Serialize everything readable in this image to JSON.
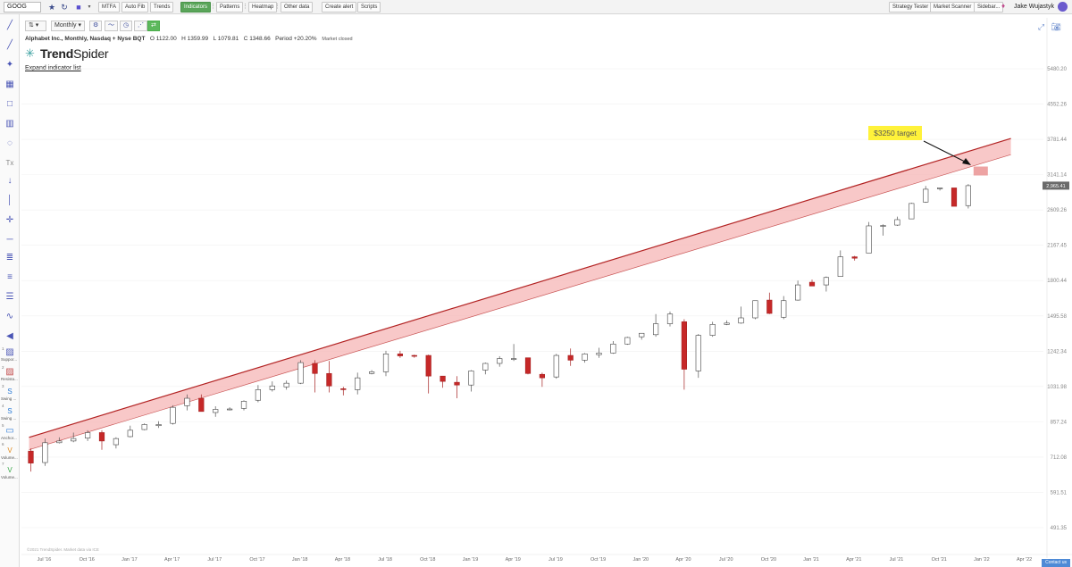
{
  "topbar": {
    "symbol": "GOOG",
    "buttons": [
      "MTFA",
      "Auto Fib",
      "Trends",
      "Indicators",
      "Patterns",
      "Heatmap",
      "Other data",
      "Create alert",
      "Scripts"
    ],
    "right_buttons": [
      "Strategy Tester",
      "Market Scanner",
      "Sidebar..."
    ],
    "user_name": "Jake Wujastyk"
  },
  "chart_toolbar": {
    "timeframe": "Monthly"
  },
  "info": {
    "name": "Alphabet Inc., Monthly, Nasdaq + Nyse BQT",
    "open": "O 1122.00",
    "high": "H 1359.99",
    "low": "L 1079.81",
    "close": "C 1348.66",
    "period": "Period +20.20%",
    "market_status": "Market closed"
  },
  "logo": {
    "trend": "Trend",
    "spider": "Spider"
  },
  "expand_link": "Expand indicator list",
  "left_labels": [
    {
      "num": "1",
      "label": "Suppor..."
    },
    {
      "num": "2",
      "label": "Resista..."
    },
    {
      "num": "3",
      "label": "Swing ..."
    },
    {
      "num": "4",
      "label": "Swing ..."
    },
    {
      "num": "5",
      "label": "Anchor..."
    },
    {
      "num": "6",
      "label": "Volume..."
    },
    {
      "num": "7",
      "label": "Volume..."
    }
  ],
  "annotation": {
    "text": "$3250 target",
    "bg": "#fff23a"
  },
  "price_badge": "2,965.41",
  "copyright": "©2021 TrendSpider. Market data via ICE",
  "contact": "Contact us",
  "colors": {
    "up_fill": "#ffffff",
    "down_fill": "#c62828",
    "channel_fill": "#f5b5b5",
    "channel_line": "#b22222"
  },
  "chart_data": {
    "type": "candlestick",
    "y_scale": "log",
    "y_ticks": [
      "5480.20",
      "4552.26",
      "3781.44",
      "3141.14",
      "2609.26",
      "2167.45",
      "1800.44",
      "1495.58",
      "1242.34",
      "1031.98",
      "857.24",
      "712.08",
      "591.51",
      "491.35"
    ],
    "x_ticks": [
      "Jul '16",
      "Oct '16",
      "Jan '17",
      "Apr '17",
      "Jul '17",
      "Oct '17",
      "Jan '18",
      "Apr '18",
      "Jul '18",
      "Oct '18",
      "Jan '19",
      "Apr '19",
      "Jul '19",
      "Oct '19",
      "Jan '20",
      "Apr '20",
      "Jul '20",
      "Oct '20",
      "Jan '21",
      "Apr '21",
      "Jul '21",
      "Oct '21",
      "Jan '22",
      "Apr '22"
    ],
    "series": [
      {
        "candles": [
          {
            "o": 735,
            "h": 745,
            "l": 660,
            "c": 690
          },
          {
            "o": 692,
            "h": 785,
            "l": 680,
            "c": 768
          },
          {
            "o": 768,
            "h": 790,
            "l": 765,
            "c": 775
          },
          {
            "o": 775,
            "h": 810,
            "l": 770,
            "c": 785
          },
          {
            "o": 787,
            "h": 820,
            "l": 775,
            "c": 810
          },
          {
            "o": 810,
            "h": 820,
            "l": 740,
            "c": 775
          },
          {
            "o": 760,
            "h": 790,
            "l": 745,
            "c": 785
          },
          {
            "o": 793,
            "h": 840,
            "l": 790,
            "c": 820
          },
          {
            "o": 823,
            "h": 850,
            "l": 820,
            "c": 845
          },
          {
            "o": 840,
            "h": 860,
            "l": 830,
            "c": 845
          },
          {
            "o": 850,
            "h": 935,
            "l": 845,
            "c": 925
          },
          {
            "o": 933,
            "h": 990,
            "l": 910,
            "c": 970
          },
          {
            "o": 970,
            "h": 990,
            "l": 905,
            "c": 905
          },
          {
            "o": 900,
            "h": 930,
            "l": 880,
            "c": 915
          },
          {
            "o": 915,
            "h": 925,
            "l": 910,
            "c": 917
          },
          {
            "o": 920,
            "h": 960,
            "l": 910,
            "c": 955
          },
          {
            "o": 960,
            "h": 1040,
            "l": 950,
            "c": 1015
          },
          {
            "o": 1015,
            "h": 1060,
            "l": 1005,
            "c": 1035
          },
          {
            "o": 1030,
            "h": 1065,
            "l": 1015,
            "c": 1050
          },
          {
            "o": 1050,
            "h": 1185,
            "l": 1045,
            "c": 1170
          },
          {
            "o": 1165,
            "h": 1185,
            "l": 1000,
            "c": 1105
          },
          {
            "o": 1105,
            "h": 1180,
            "l": 1000,
            "c": 1035
          },
          {
            "o": 1020,
            "h": 1030,
            "l": 985,
            "c": 1015
          },
          {
            "o": 1015,
            "h": 1110,
            "l": 990,
            "c": 1080
          },
          {
            "o": 1105,
            "h": 1125,
            "l": 1100,
            "c": 1115
          },
          {
            "o": 1115,
            "h": 1245,
            "l": 1090,
            "c": 1225
          },
          {
            "o": 1225,
            "h": 1245,
            "l": 1200,
            "c": 1212
          },
          {
            "o": 1215,
            "h": 1220,
            "l": 1200,
            "c": 1210
          },
          {
            "o": 1215,
            "h": 1220,
            "l": 995,
            "c": 1090
          },
          {
            "o": 1090,
            "h": 1090,
            "l": 1025,
            "c": 1060
          },
          {
            "o": 1055,
            "h": 1090,
            "l": 970,
            "c": 1040
          },
          {
            "o": 1040,
            "h": 1125,
            "l": 1005,
            "c": 1120
          },
          {
            "o": 1125,
            "h": 1170,
            "l": 1100,
            "c": 1165
          },
          {
            "o": 1165,
            "h": 1210,
            "l": 1145,
            "c": 1195
          },
          {
            "o": 1195,
            "h": 1290,
            "l": 1180,
            "c": 1195
          },
          {
            "o": 1200,
            "h": 1200,
            "l": 1100,
            "c": 1105
          },
          {
            "o": 1100,
            "h": 1110,
            "l": 1030,
            "c": 1080
          },
          {
            "o": 1085,
            "h": 1225,
            "l": 1075,
            "c": 1215
          },
          {
            "o": 1215,
            "h": 1260,
            "l": 1150,
            "c": 1185
          },
          {
            "o": 1185,
            "h": 1230,
            "l": 1170,
            "c": 1225
          },
          {
            "o": 1220,
            "h": 1265,
            "l": 1200,
            "c": 1230
          },
          {
            "o": 1230,
            "h": 1310,
            "l": 1225,
            "c": 1290
          },
          {
            "o": 1290,
            "h": 1340,
            "l": 1285,
            "c": 1335
          },
          {
            "o": 1340,
            "h": 1360,
            "l": 1320,
            "c": 1365
          },
          {
            "o": 1355,
            "h": 1510,
            "l": 1340,
            "c": 1435
          },
          {
            "o": 1435,
            "h": 1530,
            "l": 1415,
            "c": 1510
          },
          {
            "o": 1450,
            "h": 1470,
            "l": 1015,
            "c": 1130
          },
          {
            "o": 1120,
            "h": 1360,
            "l": 1080,
            "c": 1350
          },
          {
            "o": 1350,
            "h": 1450,
            "l": 1340,
            "c": 1430
          },
          {
            "o": 1430,
            "h": 1460,
            "l": 1425,
            "c": 1440
          },
          {
            "o": 1440,
            "h": 1570,
            "l": 1435,
            "c": 1480
          },
          {
            "o": 1480,
            "h": 1600,
            "l": 1470,
            "c": 1620
          },
          {
            "o": 1625,
            "h": 1690,
            "l": 1510,
            "c": 1515
          },
          {
            "o": 1485,
            "h": 1660,
            "l": 1470,
            "c": 1620
          },
          {
            "o": 1625,
            "h": 1800,
            "l": 1620,
            "c": 1760
          },
          {
            "o": 1785,
            "h": 1810,
            "l": 1760,
            "c": 1750
          },
          {
            "o": 1760,
            "h": 1840,
            "l": 1700,
            "c": 1830
          },
          {
            "o": 1840,
            "h": 2110,
            "l": 1840,
            "c": 2040
          },
          {
            "o": 2040,
            "h": 2050,
            "l": 2000,
            "c": 2025
          },
          {
            "o": 2080,
            "h": 2450,
            "l": 2080,
            "c": 2400
          },
          {
            "o": 2405,
            "h": 2420,
            "l": 2280,
            "c": 2405
          },
          {
            "o": 2410,
            "h": 2520,
            "l": 2400,
            "c": 2480
          },
          {
            "o": 2490,
            "h": 2710,
            "l": 2490,
            "c": 2700
          },
          {
            "o": 2720,
            "h": 2960,
            "l": 2710,
            "c": 2910
          },
          {
            "o": 2920,
            "h": 2935,
            "l": 2890,
            "c": 2930
          },
          {
            "o": 2930,
            "h": 2930,
            "l": 2670,
            "c": 2660
          },
          {
            "o": 2670,
            "h": 2990,
            "l": 2630,
            "c": 2965
          }
        ]
      }
    ],
    "channel": {
      "x_start": "Jul '16",
      "y_start_upper": 790,
      "y_start_lower": 740,
      "x_end": "Apr '22",
      "y_end_upper": 3800,
      "y_end_lower": 3490
    }
  }
}
